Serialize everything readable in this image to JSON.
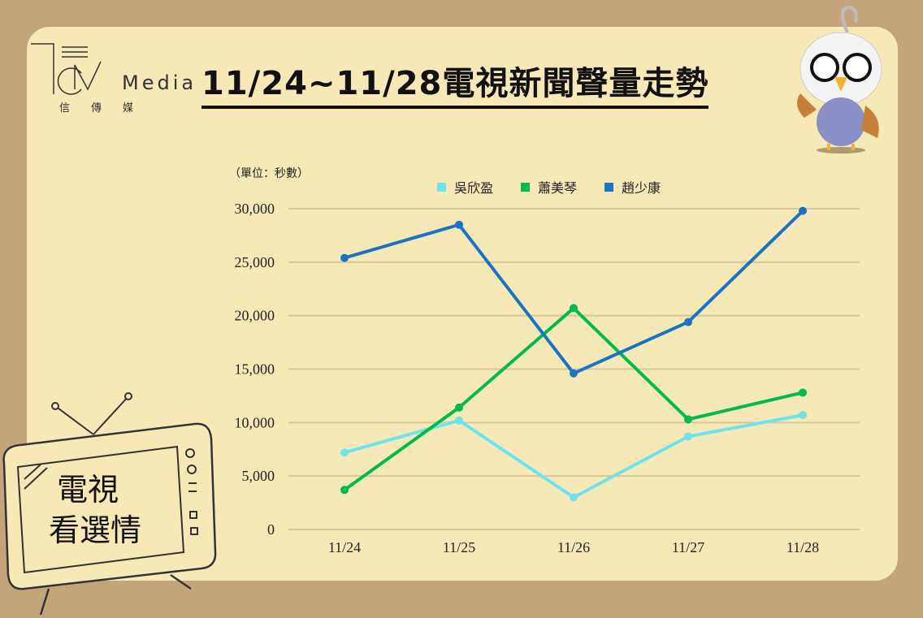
{
  "brand": {
    "logo_word": "Media",
    "logo_sub": "信傳媒"
  },
  "title": "11/24~11/28電視新聞聲量走勢",
  "tv_badge": {
    "line1": "電視",
    "line2": "看選情"
  },
  "chart_data": {
    "type": "line",
    "title": "11/24~11/28電視新聞聲量走勢",
    "unit_note": "（單位：秒數）",
    "categories": [
      "11/24",
      "11/25",
      "11/26",
      "11/27",
      "11/28"
    ],
    "ylim": [
      0,
      30000
    ],
    "yticks": [
      0,
      5000,
      10000,
      15000,
      20000,
      25000,
      30000
    ],
    "ytick_labels": [
      "0",
      "5,000",
      "10,000",
      "15,000",
      "20,000",
      "25,000",
      "30,000"
    ],
    "grid": true,
    "legend_position": "top",
    "series": [
      {
        "name": "吳欣盈",
        "color": "#6fe3ea",
        "values": [
          7200,
          10200,
          3000,
          8700,
          10700
        ]
      },
      {
        "name": "蕭美琴",
        "color": "#00b94f",
        "values": [
          3700,
          11400,
          20700,
          10300,
          12800
        ]
      },
      {
        "name": "趙少康",
        "color": "#1b73c4",
        "values": [
          25400,
          28500,
          14600,
          19400,
          29800
        ]
      }
    ]
  }
}
